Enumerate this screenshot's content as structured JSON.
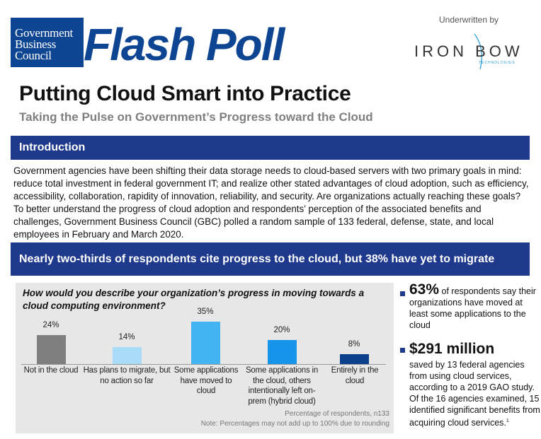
{
  "header": {
    "logo_text": [
      "Government",
      "Business",
      "Council"
    ],
    "flash_poll": "Flash Poll",
    "underwritten_by": "Underwritten by",
    "sponsor": "IRON BOW",
    "sponsor_sub": "TECHNOLOGIES",
    "title": "Putting Cloud Smart into Practice",
    "subtitle": "Taking the Pulse on Government’s Progress toward the Cloud"
  },
  "intro": {
    "heading": "Introduction",
    "text": "Government agencies have been shifting their data storage needs to cloud-based servers with two primary goals in mind: reduce total investment in federal government IT; and realize other stated advantages of cloud adoption, such as efficiency, accessibility, collaboration, rapidity of innovation, reliability, and security. Are organizations actually reaching these goals? To better understand the progress of cloud adoption and respondents’ perception of the associated benefits and challenges, Government Business Council (GBC) polled a random sample of 133 federal, defense, state, and local employees in February and March 2020."
  },
  "section": {
    "heading": "Nearly two-thirds of respondents cite progress to the cloud, but 38% have yet to migrate"
  },
  "chart_data": {
    "type": "bar",
    "title": "How would you describe your organization’s progress in moving towards a cloud computing environment?",
    "categories": [
      "Not in the cloud",
      "Has plans to migrate, but no action so far",
      "Some applications have moved to cloud",
      "Some applications in the cloud, others intentionally left on-prem (hybrid cloud)",
      "Entirely in the cloud"
    ],
    "values": [
      24,
      14,
      35,
      20,
      8
    ],
    "labels": [
      "24%",
      "14%",
      "35%",
      "20%",
      "8%"
    ],
    "colors": [
      "#7f7f7f",
      "#a9dcf9",
      "#42b4f2",
      "#1594ea",
      "#0c3f8c"
    ],
    "ylim": [
      0,
      35
    ],
    "grid": false,
    "notes": [
      "Percentage of respondents, n133",
      "Note: Percentages may not add up to 100% due to rounding"
    ]
  },
  "side": {
    "stat1": "63%",
    "stat1_text": "of respondents say their organizations have moved at least some applications to the cloud",
    "stat2": "$291 million",
    "stat2_text": "saved by 13 federal agencies from using cloud services, according to a 2019 GAO study. Of the 16 agencies examined, 15 identified significant benefits from acquiring cloud services.",
    "footnote": "1"
  }
}
